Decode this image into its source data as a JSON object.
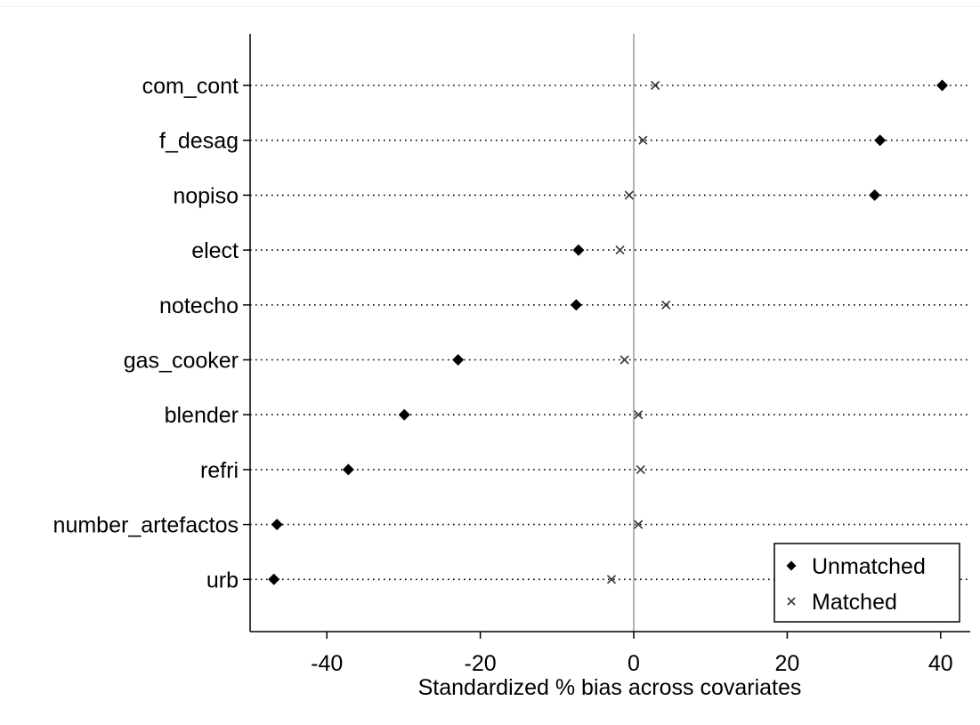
{
  "chart_data": {
    "type": "scatter",
    "categories": [
      "com_cont",
      "f_desag",
      "nopiso",
      "elect",
      "notecho",
      "gas_cooker",
      "blender",
      "refri",
      "number_artefactos",
      "urb"
    ],
    "series": [
      {
        "name": "Unmatched",
        "marker": "diamond",
        "values": [
          40.2,
          32.1,
          31.4,
          -7.2,
          -7.5,
          -22.9,
          -29.9,
          -37.2,
          -46.5,
          -46.9
        ]
      },
      {
        "name": "Matched",
        "marker": "x",
        "values": [
          2.8,
          1.2,
          -0.6,
          -1.8,
          4.2,
          -1.2,
          0.6,
          0.9,
          0.6,
          -2.9
        ]
      }
    ],
    "xlabel": "Standardized % bias across covariates",
    "xticks": [
      -40,
      -20,
      0,
      20,
      40
    ],
    "xlim": [
      -50,
      43
    ],
    "reference_line_x": 0,
    "legend_position": "bottom-right",
    "grid": "dotted horizontal lines per category",
    "colors": {
      "unmatched": "#000000",
      "matched": "#333333",
      "zero_line": "#9a9a9a"
    }
  }
}
